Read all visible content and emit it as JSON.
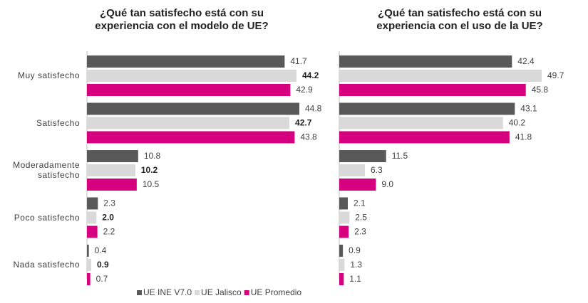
{
  "chart_data": [
    {
      "type": "bar",
      "orientation": "horizontal",
      "title": "¿Qué tan satisfecho  está con su\nexperiencia con el modelo de UE?",
      "categories": [
        "Muy satisfecho",
        "Satisfecho",
        "Moderadamente satisfecho",
        "Poco satisfecho",
        "Nada satisfecho"
      ],
      "series": [
        {
          "values": [
            41.7,
            44.8,
            10.8,
            2.3,
            0.4
          ]
        },
        {
          "values": [
            44.2,
            42.7,
            10.2,
            2.0,
            0.9
          ],
          "value_labels": [
            "44.2",
            "42.7",
            "10.2",
            "2.0",
            "0.9"
          ]
        },
        {
          "values": [
            42.9,
            43.8,
            10.5,
            2.2,
            0.7
          ]
        }
      ]
    },
    {
      "type": "bar",
      "orientation": "horizontal",
      "title": "¿Qué tan satisfecho  está con su\nexperiencia con el uso de la UE?",
      "series": [
        {
          "values": [
            42.4,
            43.1,
            11.5,
            2.1,
            0.9
          ]
        },
        {
          "values": [
            49.7,
            40.2,
            6.3,
            2.5,
            1.3
          ]
        },
        {
          "values": [
            45.8,
            41.8,
            9.0,
            2.3,
            1.1
          ],
          "value_labels": [
            "45.8",
            "41.8",
            "9.0",
            "2.3",
            "1.1"
          ]
        }
      ]
    }
  ],
  "legend": [
    {
      "name": "UE INE V7.0",
      "color": "#595959"
    },
    {
      "name": "UE Jalisco",
      "color": "#d9d9d9"
    },
    {
      "name": "UE Promedio",
      "color": "#d6007e"
    }
  ]
}
